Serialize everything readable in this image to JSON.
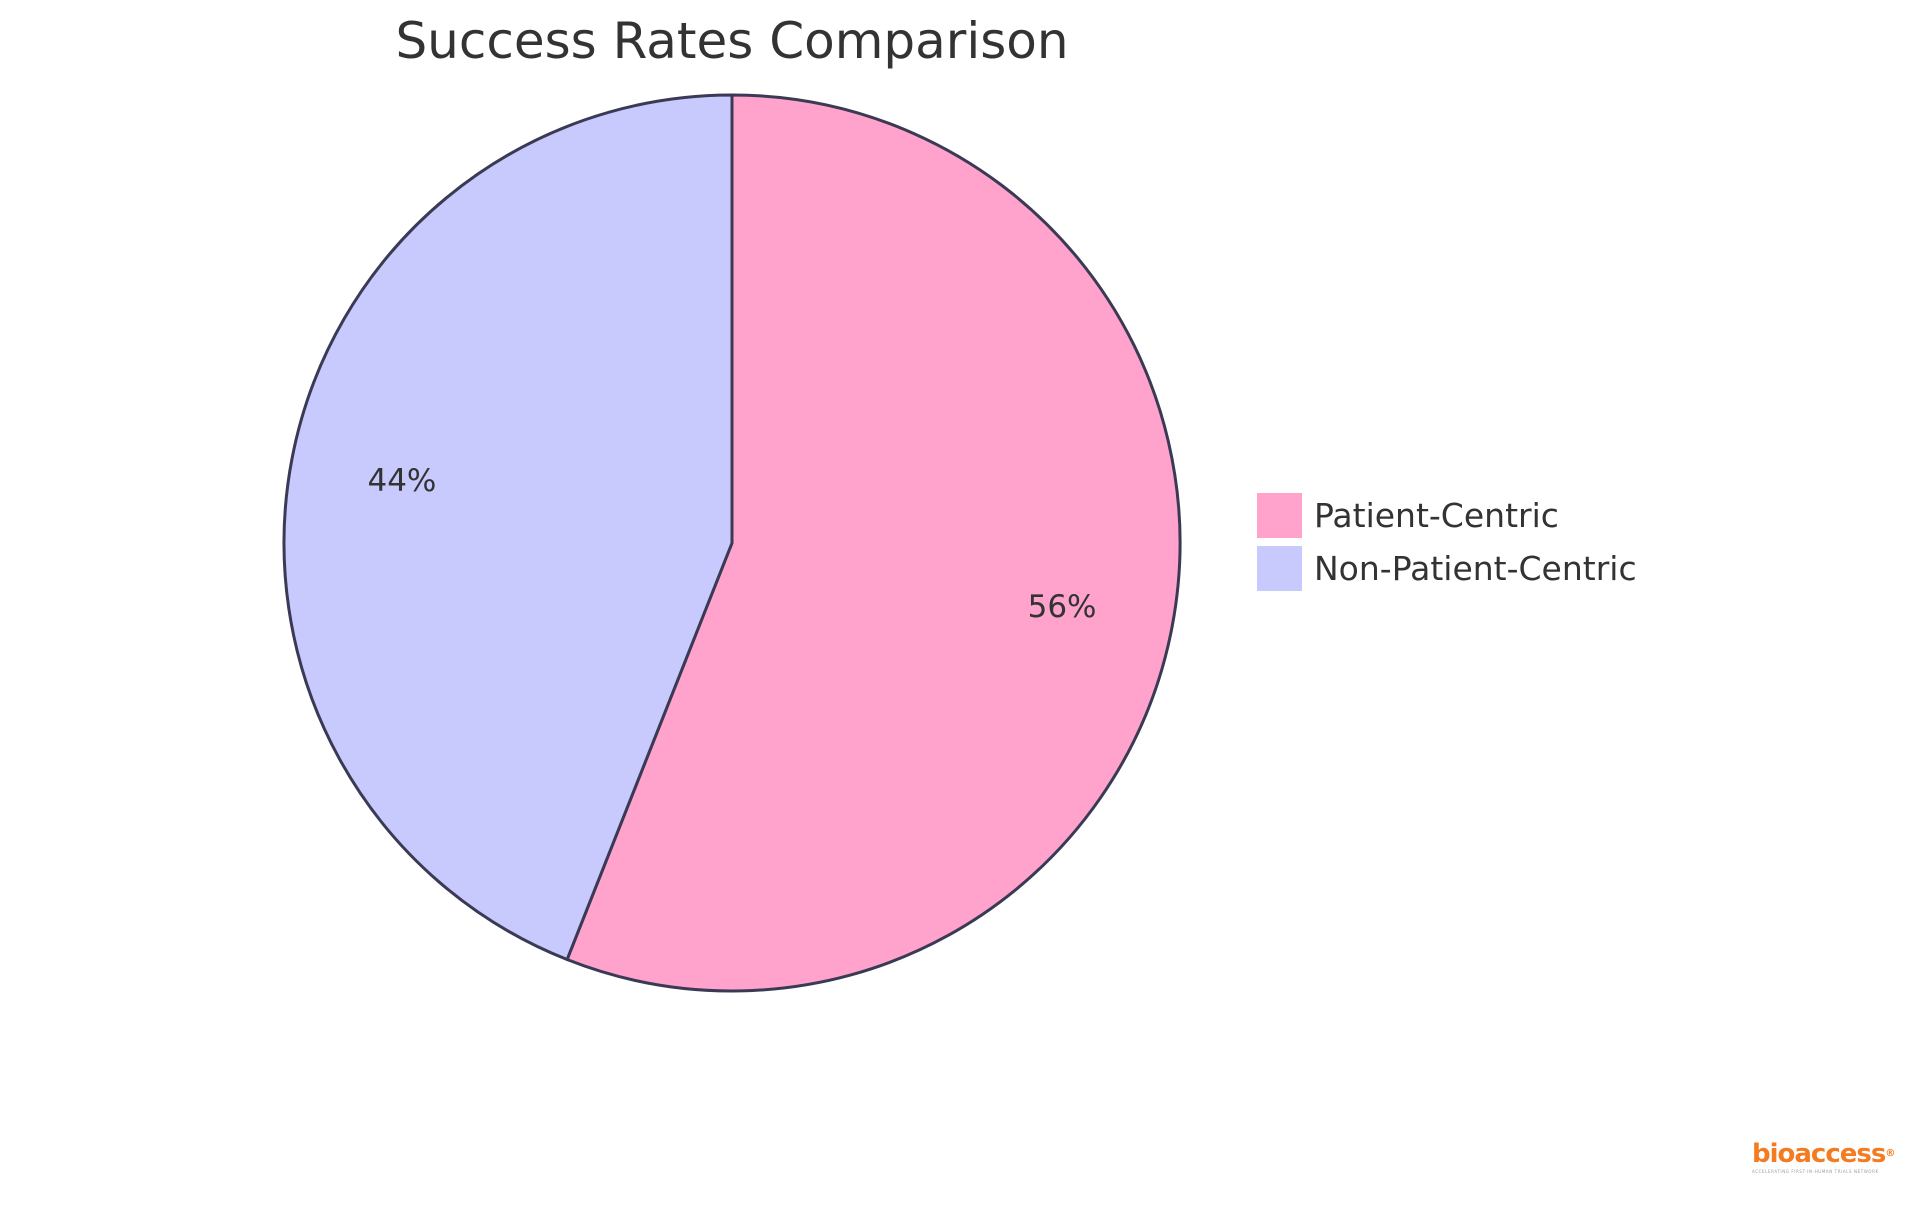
{
  "chart_data": {
    "type": "pie",
    "title": "Success Rates Comparison",
    "slices": [
      {
        "name": "Patient-Centric",
        "value": 56,
        "label": "56%",
        "color": "#FFA3CD"
      },
      {
        "name": "Non-Patient-Centric",
        "value": 44,
        "label": "44%",
        "color": "#C8C9FD"
      }
    ],
    "stroke_color": "#3a3a55",
    "legend_position": "right"
  },
  "logo": {
    "text": "bioaccess",
    "registered_mark": "®",
    "tagline": "ACCELERATING FIRST-IN-HUMAN TRIALS NETWORK",
    "color": "#F47B20"
  }
}
